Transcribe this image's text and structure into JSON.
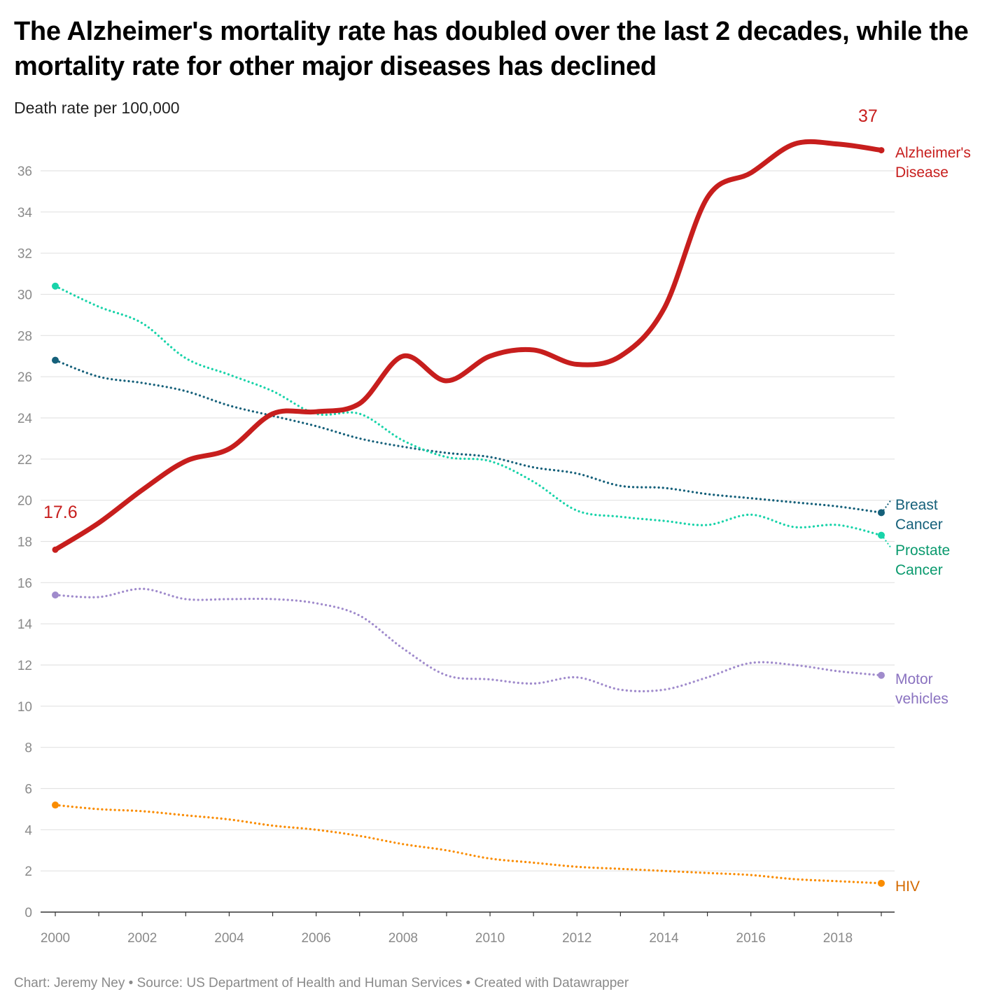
{
  "title": "The Alzheimer's mortality rate has doubled over the last 2 decades, while the mortality rate for other major diseases has declined",
  "subtitle": "Death rate per 100,000",
  "footer": "Chart: Jeremy Ney • Source: US Department of Health and Human Services • Created with Datawrapper",
  "chart_data": {
    "type": "line",
    "title": "The Alzheimer's mortality rate has doubled over the last 2 decades, while the mortality rate for other major diseases has declined",
    "ylabel": "Death rate per 100,000",
    "xlabel": "",
    "x": [
      2000,
      2001,
      2002,
      2003,
      2004,
      2005,
      2006,
      2007,
      2008,
      2009,
      2010,
      2011,
      2012,
      2013,
      2014,
      2015,
      2016,
      2017,
      2018,
      2019
    ],
    "xticks": [
      2000,
      2002,
      2004,
      2006,
      2008,
      2010,
      2012,
      2014,
      2016,
      2018
    ],
    "yticks": [
      0,
      2,
      4,
      6,
      8,
      10,
      12,
      14,
      16,
      18,
      20,
      22,
      24,
      26,
      28,
      30,
      32,
      34,
      36
    ],
    "ylim": [
      0,
      36
    ],
    "xlim": [
      2000,
      2019
    ],
    "grid": true,
    "legend": "direct labels at line ends (right)",
    "series": [
      {
        "name": "Alzheimer's Disease",
        "label_lines": [
          "Alzheimer's",
          "Disease"
        ],
        "color": "#c71e1d",
        "label_color": "#c71e1d",
        "style": "solid",
        "values": [
          17.6,
          18.9,
          20.5,
          21.9,
          22.5,
          24.2,
          24.3,
          24.7,
          27.0,
          25.8,
          27.0,
          27.3,
          26.6,
          27.0,
          29.3,
          34.7,
          35.9,
          37.3,
          37.3,
          37.0
        ]
      },
      {
        "name": "Breast Cancer",
        "label_lines": [
          "Breast",
          "Cancer"
        ],
        "color": "#15607a",
        "label_color": "#15607a",
        "style": "dotted",
        "values": [
          26.8,
          26.0,
          25.7,
          25.3,
          24.6,
          24.1,
          23.6,
          23.0,
          22.6,
          22.3,
          22.1,
          21.6,
          21.3,
          20.7,
          20.6,
          20.3,
          20.1,
          19.9,
          19.7,
          19.4
        ]
      },
      {
        "name": "Prostate Cancer",
        "label_lines": [
          "Prostate",
          "Cancer"
        ],
        "color": "#18d3a9",
        "label_color": "#0a9a6e",
        "style": "dotted",
        "values": [
          30.4,
          29.4,
          28.6,
          26.9,
          26.1,
          25.3,
          24.2,
          24.2,
          22.9,
          22.1,
          21.9,
          20.9,
          19.5,
          19.2,
          19.0,
          18.8,
          19.3,
          18.7,
          18.8,
          18.3
        ]
      },
      {
        "name": "Motor vehicles",
        "label_lines": [
          "Motor",
          "vehicles"
        ],
        "color": "#a08bcc",
        "label_color": "#8a72c0",
        "style": "dotted",
        "values": [
          15.4,
          15.3,
          15.7,
          15.2,
          15.2,
          15.2,
          15.0,
          14.4,
          12.8,
          11.5,
          11.3,
          11.1,
          11.4,
          10.8,
          10.8,
          11.4,
          12.1,
          12.0,
          11.7,
          11.5
        ]
      },
      {
        "name": "HIV",
        "label_lines": [
          "HIV"
        ],
        "color": "#fa8c00",
        "label_color": "#d46a00",
        "style": "dotted",
        "values": [
          5.2,
          5.0,
          4.9,
          4.7,
          4.5,
          4.2,
          4.0,
          3.7,
          3.3,
          3.0,
          2.6,
          2.4,
          2.2,
          2.1,
          2.0,
          1.9,
          1.8,
          1.6,
          1.5,
          1.4
        ]
      }
    ],
    "annotations": [
      {
        "text": "17.6",
        "x": 2000,
        "y": 17.6,
        "color": "#c71e1d"
      },
      {
        "text": "37",
        "x": 2019,
        "y": 37.0,
        "color": "#c71e1d"
      }
    ]
  }
}
